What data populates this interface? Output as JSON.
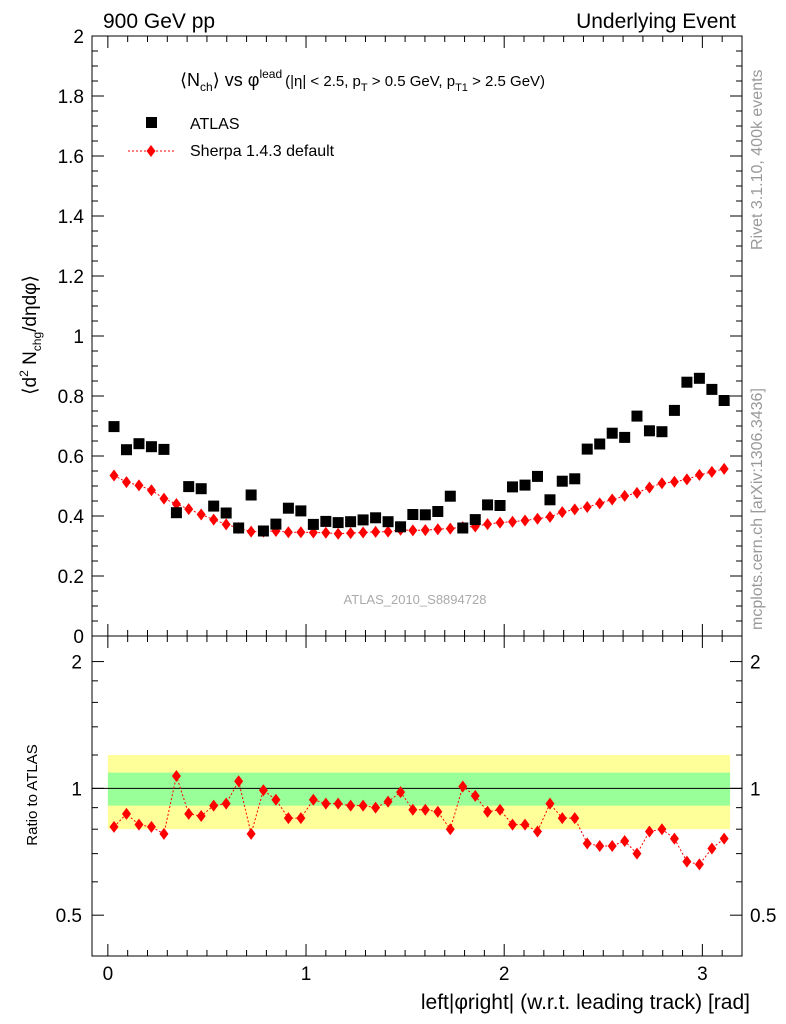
{
  "header": {
    "left": "900 GeV pp",
    "right": "Underlying Event"
  },
  "side_labels": {
    "rivet": "Rivet 3.1.10,  400k events",
    "mcplots": "mcplots.cern.ch [arXiv:1306.3436]"
  },
  "colors": {
    "data": "#000000",
    "mc": "#ff0000",
    "band_inner": "#99ff99",
    "band_outer": "#ffff99"
  },
  "chart_data": [
    {
      "type": "scatter",
      "title_parts": {
        "n": "N",
        "n_sub": "ch",
        "vs": "vs",
        "phi": "φ",
        "phi_sup": "lead",
        "cut_open": "(|η| < 2.5, p",
        "pt_sub": "T",
        "cut_mid": " > 0.5 GeV, p",
        "pt1_sub": "T1",
        "cut_close": " > 2.5 GeV)"
      },
      "ylabel_parts": {
        "open": "⟨d",
        "sup2": "2",
        "n": " N",
        "chg_sub": "chg",
        "rest": "/dηdφ⟩"
      },
      "watermark": "ATLAS_2010_S8894728",
      "ylim": [
        0,
        2
      ],
      "xlim": [
        -0.08,
        3.2
      ],
      "y_ticks": [
        "0",
        "0.2",
        "0.4",
        "0.6",
        "0.8",
        "1",
        "1.2",
        "1.4",
        "1.6",
        "1.8",
        "2"
      ],
      "legend_placement": "top-left",
      "x": [
        0.031,
        0.094,
        0.157,
        0.22,
        0.283,
        0.346,
        0.408,
        0.471,
        0.534,
        0.597,
        0.66,
        0.723,
        0.785,
        0.848,
        0.911,
        0.974,
        1.037,
        1.1,
        1.162,
        1.225,
        1.288,
        1.351,
        1.414,
        1.477,
        1.539,
        1.602,
        1.665,
        1.728,
        1.791,
        1.854,
        1.916,
        1.979,
        2.042,
        2.105,
        2.168,
        2.231,
        2.293,
        2.356,
        2.419,
        2.482,
        2.545,
        2.608,
        2.67,
        2.733,
        2.796,
        2.859,
        2.922,
        2.985,
        3.048,
        3.11
      ],
      "series": [
        {
          "name": "ATLAS",
          "values": [
            0.698,
            0.621,
            0.641,
            0.631,
            0.622,
            0.411,
            0.498,
            0.491,
            0.433,
            0.41,
            0.36,
            0.47,
            0.35,
            0.373,
            0.426,
            0.417,
            0.372,
            0.382,
            0.378,
            0.381,
            0.387,
            0.394,
            0.381,
            0.364,
            0.405,
            0.404,
            0.415,
            0.466,
            0.36,
            0.388,
            0.437,
            0.435,
            0.497,
            0.503,
            0.532,
            0.454,
            0.516,
            0.524,
            0.623,
            0.64,
            0.676,
            0.662,
            0.733,
            0.684,
            0.681,
            0.752,
            0.846,
            0.859,
            0.822,
            0.785
          ]
        },
        {
          "name": "Sherpa 1.4.3 default",
          "values": [
            0.535,
            0.513,
            0.502,
            0.486,
            0.458,
            0.44,
            0.423,
            0.405,
            0.388,
            0.372,
            0.36,
            0.348,
            0.348,
            0.35,
            0.346,
            0.346,
            0.345,
            0.344,
            0.341,
            0.343,
            0.345,
            0.347,
            0.348,
            0.354,
            0.352,
            0.353,
            0.356,
            0.358,
            0.363,
            0.365,
            0.373,
            0.378,
            0.381,
            0.385,
            0.391,
            0.397,
            0.413,
            0.422,
            0.43,
            0.442,
            0.455,
            0.467,
            0.477,
            0.495,
            0.509,
            0.514,
            0.522,
            0.537,
            0.547,
            0.557
          ]
        }
      ]
    },
    {
      "type": "line",
      "ylabel": "Ratio to ATLAS",
      "xlabel": "left|φright| (w.r.t. leading track) [rad]",
      "ylim": [
        0.4,
        2.3
      ],
      "y_scale": "log",
      "xlim": [
        -0.08,
        3.2
      ],
      "y_ticks": [
        "0.5",
        "1",
        "2"
      ],
      "x_ticks": [
        "0",
        "1",
        "2",
        "3"
      ],
      "bands": {
        "inner_half_width": 0.09,
        "outer_half_width": 0.2
      },
      "x": [
        0.031,
        0.094,
        0.157,
        0.22,
        0.283,
        0.346,
        0.408,
        0.471,
        0.534,
        0.597,
        0.66,
        0.723,
        0.785,
        0.848,
        0.911,
        0.974,
        1.037,
        1.1,
        1.162,
        1.225,
        1.288,
        1.351,
        1.414,
        1.477,
        1.539,
        1.602,
        1.665,
        1.728,
        1.791,
        1.854,
        1.916,
        1.979,
        2.042,
        2.105,
        2.168,
        2.231,
        2.293,
        2.356,
        2.419,
        2.482,
        2.545,
        2.608,
        2.67,
        2.733,
        2.796,
        2.859,
        2.922,
        2.985,
        3.048,
        3.11
      ],
      "series": [
        {
          "name": "Sherpa 1.4.3 default",
          "values": [
            0.81,
            0.87,
            0.82,
            0.81,
            0.78,
            1.07,
            0.87,
            0.86,
            0.91,
            0.92,
            1.04,
            0.78,
            0.99,
            0.94,
            0.85,
            0.85,
            0.94,
            0.92,
            0.92,
            0.91,
            0.91,
            0.9,
            0.93,
            0.98,
            0.89,
            0.89,
            0.88,
            0.8,
            1.01,
            0.96,
            0.88,
            0.89,
            0.82,
            0.82,
            0.79,
            0.92,
            0.85,
            0.85,
            0.74,
            0.73,
            0.73,
            0.75,
            0.7,
            0.79,
            0.8,
            0.76,
            0.67,
            0.66,
            0.72,
            0.76
          ]
        }
      ]
    }
  ]
}
